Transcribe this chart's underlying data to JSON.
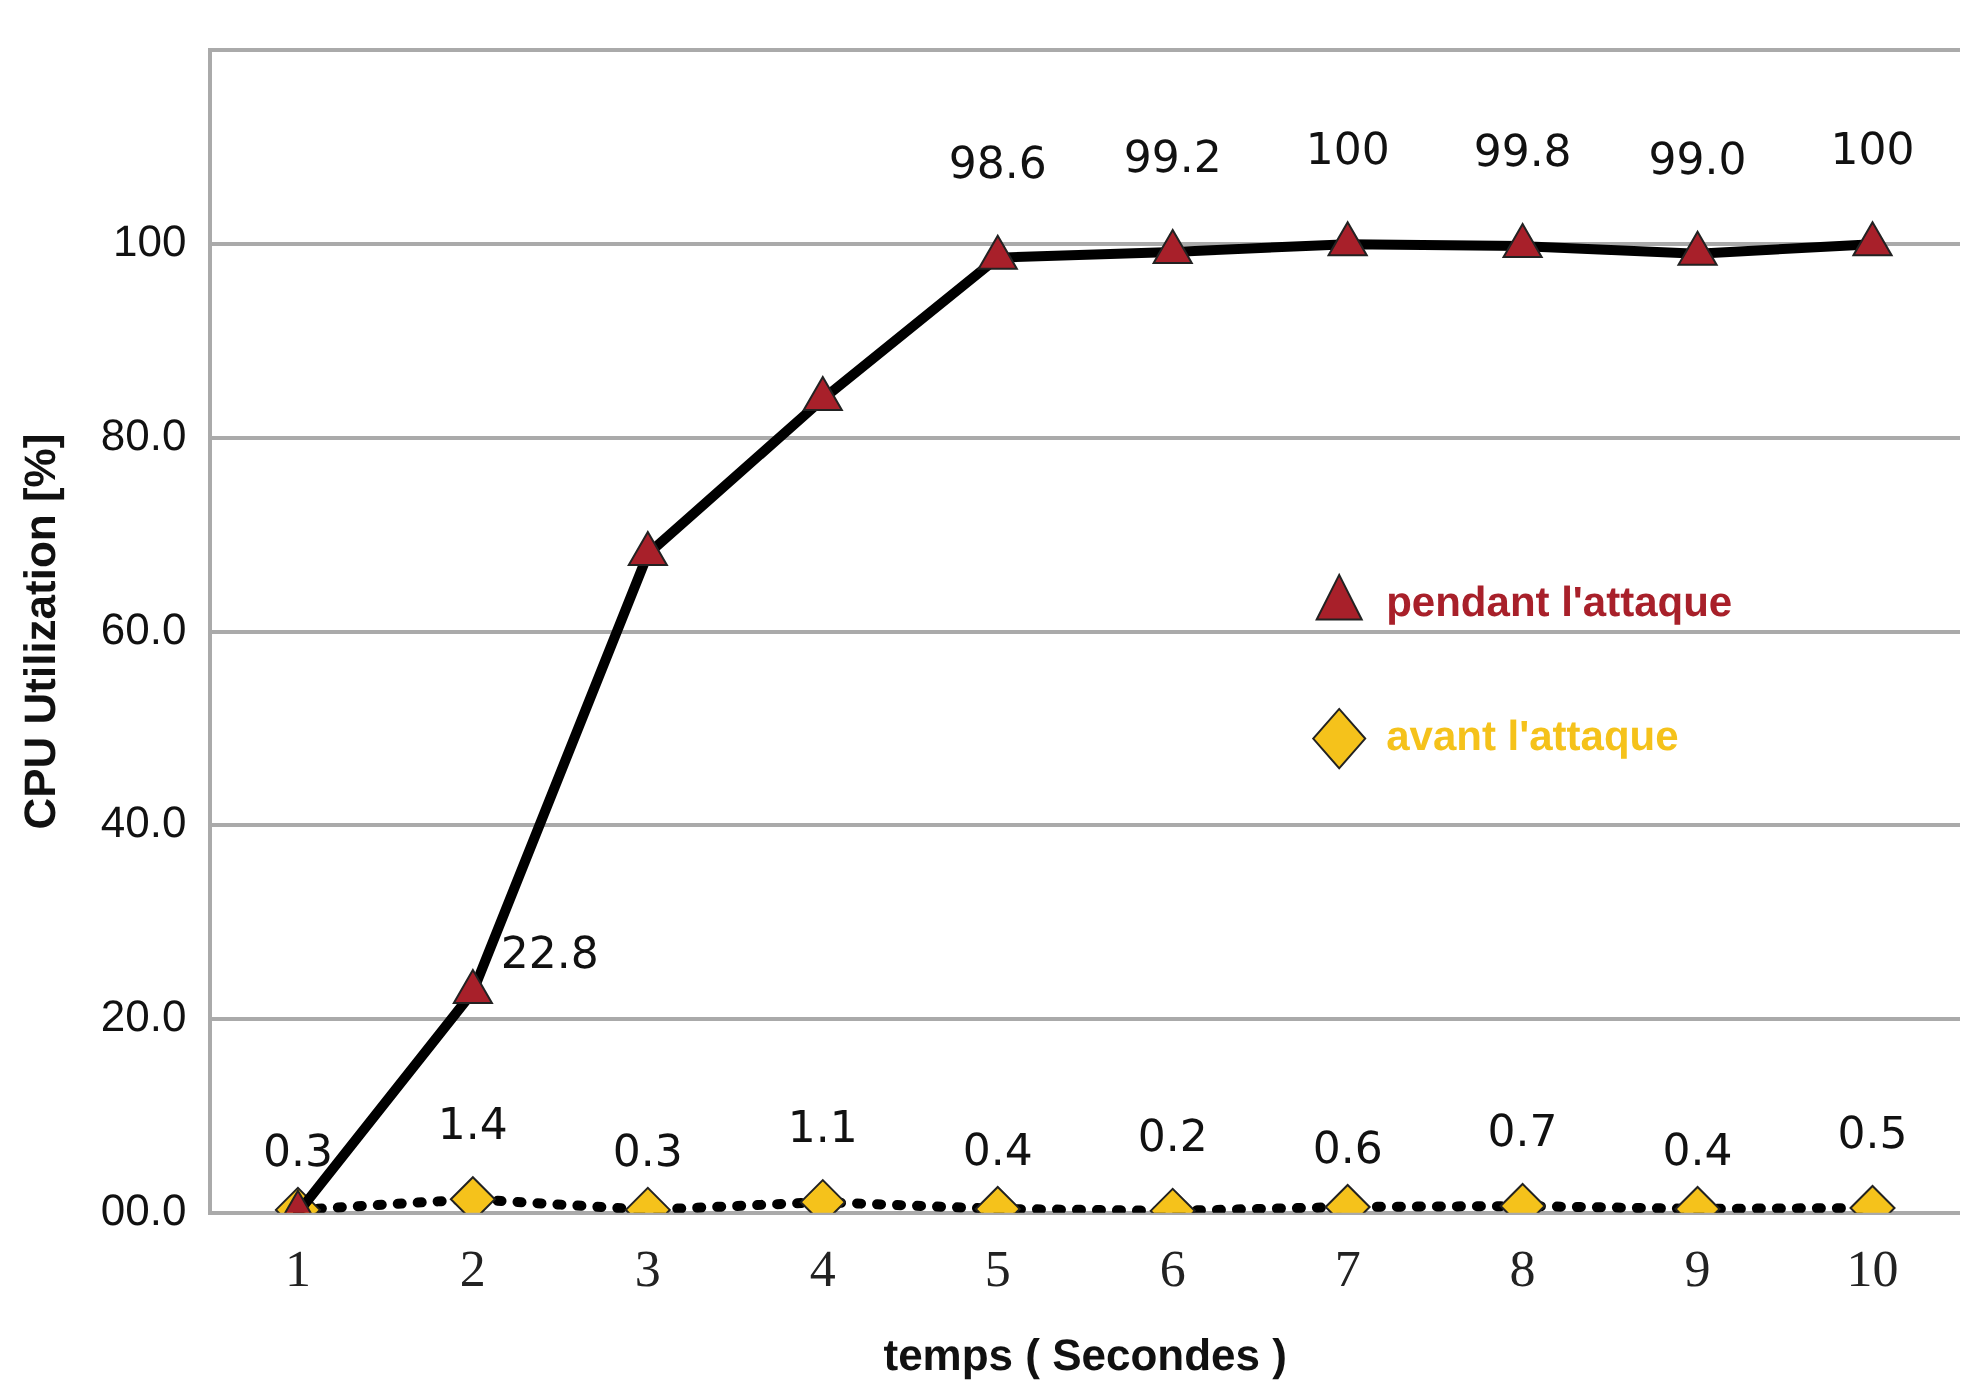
{
  "chart_data": {
    "type": "line",
    "xlabel": "temps ( Secondes )",
    "ylabel": "CPU Utilization [%]",
    "categories": [
      "1",
      "2",
      "3",
      "4",
      "5",
      "6",
      "7",
      "8",
      "9",
      "10"
    ],
    "series": [
      {
        "name": "pendant l'attaque",
        "color": "#a8202a",
        "marker": "triangle",
        "line_style": "solid",
        "values": [
          0,
          22.8,
          68,
          84,
          98.6,
          99.2,
          100,
          99.8,
          99.0,
          100
        ],
        "value_labels": [
          null,
          "22.8",
          null,
          null,
          "98.6",
          "99.2",
          "100",
          "99.8",
          "99.0",
          "100"
        ]
      },
      {
        "name": "avant l'attaque",
        "color": "#f5c21b",
        "marker": "diamond",
        "line_style": "dotted",
        "values": [
          0.3,
          1.4,
          0.3,
          1.1,
          0.4,
          0.2,
          0.6,
          0.7,
          0.4,
          0.5
        ],
        "value_labels": [
          "0.3",
          "1.4",
          "0.3",
          "1.1",
          "0.4",
          "0.2",
          "0.6",
          "0.7",
          "0.4",
          "0.5"
        ]
      }
    ],
    "ylim": [
      0,
      120
    ],
    "yticks": [
      {
        "value": 0,
        "label": "00.0"
      },
      {
        "value": 20,
        "label": "20.0"
      },
      {
        "value": 40,
        "label": "40.0"
      },
      {
        "value": 60,
        "label": "60.0"
      },
      {
        "value": 80,
        "label": "80.0"
      },
      100,
      {
        "value": 120,
        "label": null
      }
    ],
    "grid": "y",
    "legend": "right"
  }
}
